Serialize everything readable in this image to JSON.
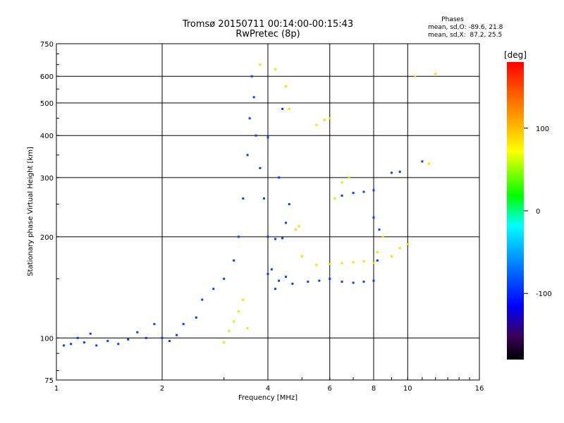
{
  "chart_data": {
    "type": "scatter",
    "title": "Tromsø 20150711 00:14:00-00:15:43",
    "subtitle": "RwPretec (8p)",
    "xlabel": "Frequency [MHz]",
    "ylabel": "Stationary phase Virtual Height [km]",
    "x_scale": "log",
    "y_scale": "log",
    "xlim": [
      1,
      16
    ],
    "ylim": [
      75,
      750
    ],
    "x_ticks": [
      1,
      2,
      4,
      6,
      8,
      10,
      16
    ],
    "x_tick_labels": [
      "1",
      "2",
      "4",
      "6",
      "8",
      "10",
      "16"
    ],
    "y_ticks": [
      75,
      100,
      200,
      300,
      400,
      500,
      600,
      750
    ],
    "y_tick_labels": [
      "75",
      "100",
      "200",
      "300",
      "400",
      "500",
      "600",
      "750"
    ],
    "grid": true,
    "annotation": {
      "title": "Phases",
      "line1": "mean, sd,O: -89.6, 21.8",
      "line2": "mean, sd,X:  87.2, 25.5"
    },
    "colorbar": {
      "label": "[deg]",
      "range": [
        -180,
        180
      ],
      "ticks": [
        100,
        0,
        -100
      ],
      "tick_labels": [
        "100",
        "0",
        "-100"
      ],
      "colormap": "rainbow"
    },
    "series": [
      {
        "name": "O-mode",
        "phase_mean": -89.6,
        "phase_sd": 21.8,
        "points": [
          [
            1.05,
            95
          ],
          [
            1.1,
            96
          ],
          [
            1.15,
            100
          ],
          [
            1.2,
            97
          ],
          [
            1.25,
            103
          ],
          [
            1.3,
            95
          ],
          [
            1.4,
            98
          ],
          [
            1.5,
            96
          ],
          [
            1.6,
            99
          ],
          [
            1.7,
            104
          ],
          [
            1.8,
            100
          ],
          [
            1.9,
            110
          ],
          [
            2.0,
            100
          ],
          [
            2.1,
            98
          ],
          [
            2.2,
            102
          ],
          [
            2.3,
            110
          ],
          [
            2.5,
            115
          ],
          [
            2.6,
            130
          ],
          [
            2.8,
            140
          ],
          [
            3.0,
            150
          ],
          [
            3.2,
            170
          ],
          [
            3.3,
            200
          ],
          [
            3.4,
            260
          ],
          [
            3.5,
            350
          ],
          [
            3.55,
            450
          ],
          [
            3.6,
            600
          ],
          [
            3.65,
            520
          ],
          [
            3.7,
            400
          ],
          [
            3.8,
            320
          ],
          [
            3.9,
            260
          ],
          [
            4.0,
            200
          ],
          [
            4.0,
            395
          ],
          [
            4.1,
            160
          ],
          [
            4.2,
            140
          ],
          [
            4.3,
            300
          ],
          [
            4.4,
            480
          ],
          [
            4.5,
            220
          ],
          [
            4.6,
            250
          ],
          [
            4.2,
            197
          ],
          [
            4.4,
            198
          ],
          [
            4.0,
            155
          ],
          [
            4.3,
            148
          ],
          [
            4.5,
            152
          ],
          [
            4.7,
            145
          ],
          [
            5.2,
            147
          ],
          [
            5.6,
            148
          ],
          [
            6.0,
            150
          ],
          [
            6.5,
            147
          ],
          [
            7.0,
            146
          ],
          [
            7.5,
            147
          ],
          [
            8.0,
            148
          ],
          [
            8.2,
            170
          ],
          [
            6.5,
            265
          ],
          [
            7.0,
            270
          ],
          [
            7.5,
            272
          ],
          [
            8.0,
            275
          ],
          [
            8.0,
            228
          ],
          [
            8.3,
            210
          ],
          [
            9.0,
            310
          ],
          [
            9.5,
            312
          ],
          [
            11.0,
            335
          ]
        ]
      },
      {
        "name": "X-mode",
        "phase_mean": 87.2,
        "phase_sd": 25.5,
        "points": [
          [
            3.0,
            97
          ],
          [
            3.1,
            105
          ],
          [
            3.2,
            112
          ],
          [
            3.3,
            120
          ],
          [
            3.4,
            130
          ],
          [
            3.5,
            107
          ],
          [
            3.8,
            650
          ],
          [
            4.2,
            630
          ],
          [
            4.5,
            560
          ],
          [
            4.6,
            480
          ],
          [
            4.8,
            210
          ],
          [
            4.9,
            215
          ],
          [
            5.0,
            175
          ],
          [
            5.5,
            430
          ],
          [
            5.8,
            445
          ],
          [
            6.0,
            450
          ],
          [
            6.2,
            260
          ],
          [
            6.5,
            290
          ],
          [
            6.8,
            300
          ],
          [
            5.5,
            165
          ],
          [
            6.0,
            166
          ],
          [
            6.5,
            167
          ],
          [
            7.0,
            168
          ],
          [
            7.5,
            169
          ],
          [
            8.0,
            167
          ],
          [
            8.2,
            180
          ],
          [
            8.5,
            200
          ],
          [
            9.0,
            175
          ],
          [
            9.5,
            185
          ],
          [
            10.0,
            190
          ],
          [
            10.5,
            600
          ],
          [
            11.5,
            330
          ],
          [
            12.0,
            610
          ]
        ]
      }
    ]
  }
}
